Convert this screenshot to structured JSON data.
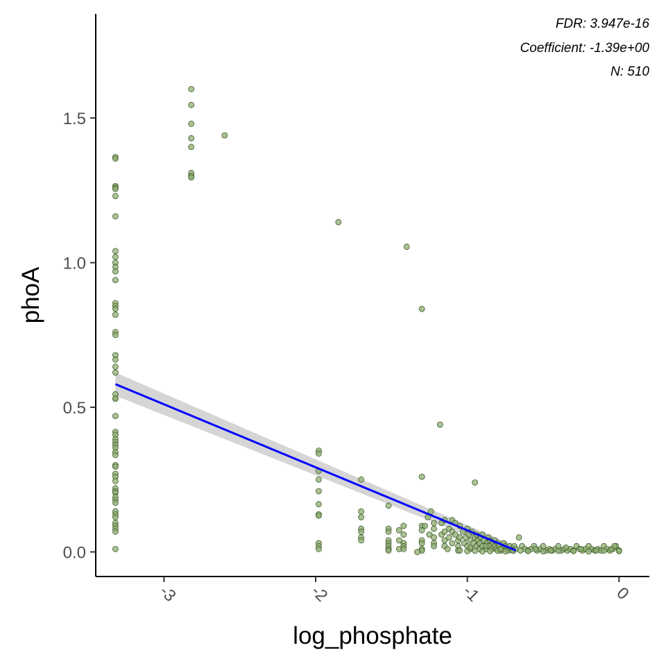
{
  "chart_data": {
    "type": "scatter",
    "xlabel": "log_phosphate",
    "ylabel": "phoA",
    "xlim": [
      -3.45,
      0.2
    ],
    "ylim": [
      -0.085,
      1.86
    ],
    "x_ticks": [
      -3,
      -2,
      -1,
      0
    ],
    "x_tick_labels": [
      "-3",
      "-2",
      "-1",
      "0"
    ],
    "y_ticks": [
      0.0,
      0.5,
      1.0,
      1.5
    ],
    "y_tick_labels": [
      "0.0",
      "0.5",
      "1.0",
      "1.5"
    ],
    "grid": false,
    "legend": "none",
    "annotations": [
      "FDR: 3.947e-16",
      "Coefficient: -1.39e+00",
      "N: 510"
    ],
    "colors": {
      "point_fill": "#8fad72",
      "point_stroke": "#3e5a2a",
      "fit_line": "#0000ff",
      "ci_band": "#bebebe"
    },
    "fit": {
      "x": [
        -3.32,
        -0.68
      ],
      "y": [
        0.58,
        0.005
      ],
      "ci_upper": [
        0.62,
        0.02
      ],
      "ci_lower": [
        0.54,
        -0.01
      ]
    },
    "points": {
      "x": [
        -3.32,
        -3.32,
        -3.32,
        -3.32,
        -3.32,
        -3.32,
        -3.32,
        -3.32,
        -3.32,
        -3.32,
        -3.32,
        -3.32,
        -3.32,
        -3.32,
        -3.32,
        -3.32,
        -3.32,
        -3.32,
        -3.32,
        -3.32,
        -3.32,
        -3.32,
        -3.32,
        -3.32,
        -3.32,
        -3.32,
        -3.32,
        -3.32,
        -3.32,
        -3.32,
        -3.32,
        -3.32,
        -3.32,
        -3.32,
        -3.32,
        -3.32,
        -3.32,
        -3.32,
        -3.32,
        -3.32,
        -3.32,
        -3.32,
        -3.32,
        -3.32,
        -3.32,
        -3.32,
        -3.32,
        -3.32,
        -3.32,
        -3.32,
        -3.32,
        -3.32,
        -3.32,
        -3.32,
        -2.82,
        -2.82,
        -2.82,
        -2.82,
        -2.82,
        -2.82,
        -2.82,
        -2.82,
        -2.6,
        -1.98,
        -1.98,
        -1.98,
        -1.98,
        -1.98,
        -1.98,
        -1.98,
        -1.98,
        -1.98,
        -1.98,
        -1.98,
        -1.85,
        -1.7,
        -1.7,
        -1.7,
        -1.7,
        -1.7,
        -1.7,
        -1.7,
        -1.52,
        -1.52,
        -1.52,
        -1.52,
        -1.52,
        -1.52,
        -1.52,
        -1.52,
        -1.45,
        -1.45,
        -1.45,
        -1.42,
        -1.42,
        -1.42,
        -1.42,
        -1.42,
        -1.4,
        -1.3,
        -1.3,
        -1.3,
        -1.3,
        -1.3,
        -1.3,
        -1.3,
        -1.3,
        -1.28,
        -1.26,
        -1.25,
        -1.24,
        -1.22,
        -1.22,
        -1.22,
        -1.22,
        -1.22,
        -1.18,
        -1.17,
        -1.17,
        -1.15,
        -1.15,
        -1.15,
        -1.15,
        -1.13,
        -1.12,
        -1.12,
        -1.1,
        -1.1,
        -1.1,
        -1.08,
        -1.08,
        -1.06,
        -1.06,
        -1.06,
        -1.05,
        -1.05,
        -1.03,
        -1.02,
        -1.01,
        -1.0,
        -1.0,
        -0.99,
        -0.98,
        -0.98,
        -0.97,
        -0.96,
        -0.95,
        -0.94,
        -0.94,
        -0.93,
        -0.92,
        -0.92,
        -0.91,
        -0.9,
        -0.9,
        -0.89,
        -0.88,
        -0.87,
        -0.86,
        -0.86,
        -0.85,
        -0.84,
        -0.83,
        -0.82,
        -0.82,
        -0.81,
        -0.8,
        -0.79,
        -0.78,
        -0.77,
        -0.76,
        -0.75,
        -0.74,
        -0.73,
        -0.72,
        -0.71,
        -0.7,
        -0.69,
        -0.68,
        -0.66,
        -0.64,
        -0.62,
        -0.6,
        -0.58,
        -0.56,
        -0.54,
        -0.52,
        -0.5,
        -0.48,
        -0.46,
        -0.44,
        -0.42,
        -0.4,
        -0.38,
        -0.36,
        -0.34,
        -0.32,
        -0.3,
        -0.28,
        -0.26,
        -0.24,
        -0.22,
        -0.2,
        -0.18,
        -0.16,
        -0.14,
        -0.12,
        -0.1,
        -0.08,
        -0.06,
        -0.04,
        -0.02,
        0.0,
        -1.05,
        -1.0,
        -0.95,
        -0.9,
        -0.85,
        -0.8,
        -0.75,
        -0.7,
        -0.6,
        -0.5,
        -0.4,
        -0.3,
        -0.2,
        -0.1,
        0.0,
        -0.98,
        -0.88,
        -0.78,
        -0.65,
        -0.55,
        -0.45,
        -0.35,
        -0.25,
        -0.15,
        -0.05,
        -0.03,
        -1.33,
        -0.95
      ],
      "y": [
        1.365,
        1.36,
        1.265,
        1.26,
        1.255,
        1.23,
        1.16,
        1.04,
        1.02,
        1.0,
        0.985,
        0.97,
        0.94,
        0.86,
        0.85,
        0.84,
        0.82,
        0.76,
        0.75,
        0.68,
        0.665,
        0.64,
        0.62,
        0.545,
        0.53,
        0.47,
        0.415,
        0.405,
        0.39,
        0.38,
        0.37,
        0.36,
        0.345,
        0.335,
        0.3,
        0.295,
        0.27,
        0.26,
        0.245,
        0.22,
        0.21,
        0.205,
        0.19,
        0.18,
        0.17,
        0.14,
        0.13,
        0.12,
        0.1,
        0.09,
        0.08,
        0.07,
        0.01,
        0.53,
        1.6,
        1.545,
        1.48,
        1.43,
        1.4,
        1.31,
        1.3,
        1.295,
        1.44,
        0.35,
        0.34,
        0.28,
        0.25,
        0.21,
        0.165,
        0.13,
        0.125,
        0.03,
        0.02,
        0.01,
        1.14,
        0.25,
        0.14,
        0.12,
        0.08,
        0.07,
        0.05,
        0.04,
        0.16,
        0.08,
        0.07,
        0.04,
        0.03,
        0.02,
        0.01,
        0.005,
        0.075,
        0.04,
        0.01,
        0.09,
        0.06,
        0.03,
        0.02,
        0.01,
        1.055,
        0.84,
        0.26,
        0.09,
        0.075,
        0.04,
        0.03,
        0.01,
        0.005,
        0.09,
        0.12,
        0.06,
        0.14,
        0.1,
        0.08,
        0.05,
        0.03,
        0.02,
        0.44,
        0.1,
        0.06,
        0.11,
        0.07,
        0.04,
        0.02,
        0.01,
        0.08,
        0.05,
        0.11,
        0.07,
        0.03,
        0.1,
        0.06,
        0.04,
        0.02,
        0.005,
        0.09,
        0.05,
        0.07,
        0.03,
        0.05,
        0.08,
        0.02,
        0.06,
        0.04,
        0.01,
        0.07,
        0.03,
        0.05,
        0.02,
        0.06,
        0.04,
        0.01,
        0.03,
        0.05,
        0.02,
        0.06,
        0.04,
        0.01,
        0.03,
        0.05,
        0.02,
        0.04,
        0.01,
        0.03,
        0.02,
        0.04,
        0.01,
        0.03,
        0.02,
        0.005,
        0.01,
        0.03,
        0.02,
        0.01,
        0.005,
        0.02,
        0.01,
        0.005,
        0.02,
        0.01,
        0.05,
        0.02,
        0.01,
        0.005,
        0.01,
        0.02,
        0.005,
        0.01,
        0.02,
        0.005,
        0.01,
        0.005,
        0.01,
        0.02,
        0.005,
        0.01,
        0.005,
        0.01,
        0.005,
        0.02,
        0.01,
        0.005,
        0.01,
        0.02,
        0.01,
        0.005,
        0.01,
        0.005,
        0.02,
        0.01,
        0.005,
        0.01,
        0.02,
        0.005,
        0.005,
        0.003,
        0.004,
        0.002,
        0.003,
        0.004,
        0.002,
        0.005,
        0.003,
        0.002,
        0.004,
        0.003,
        0.002,
        0.004,
        0.003,
        0.015,
        0.02,
        0.01,
        0.005,
        0.01,
        0.005,
        0.015,
        0.01,
        0.005,
        0.01,
        0.02,
        0.0,
        0.24
      ]
    }
  }
}
